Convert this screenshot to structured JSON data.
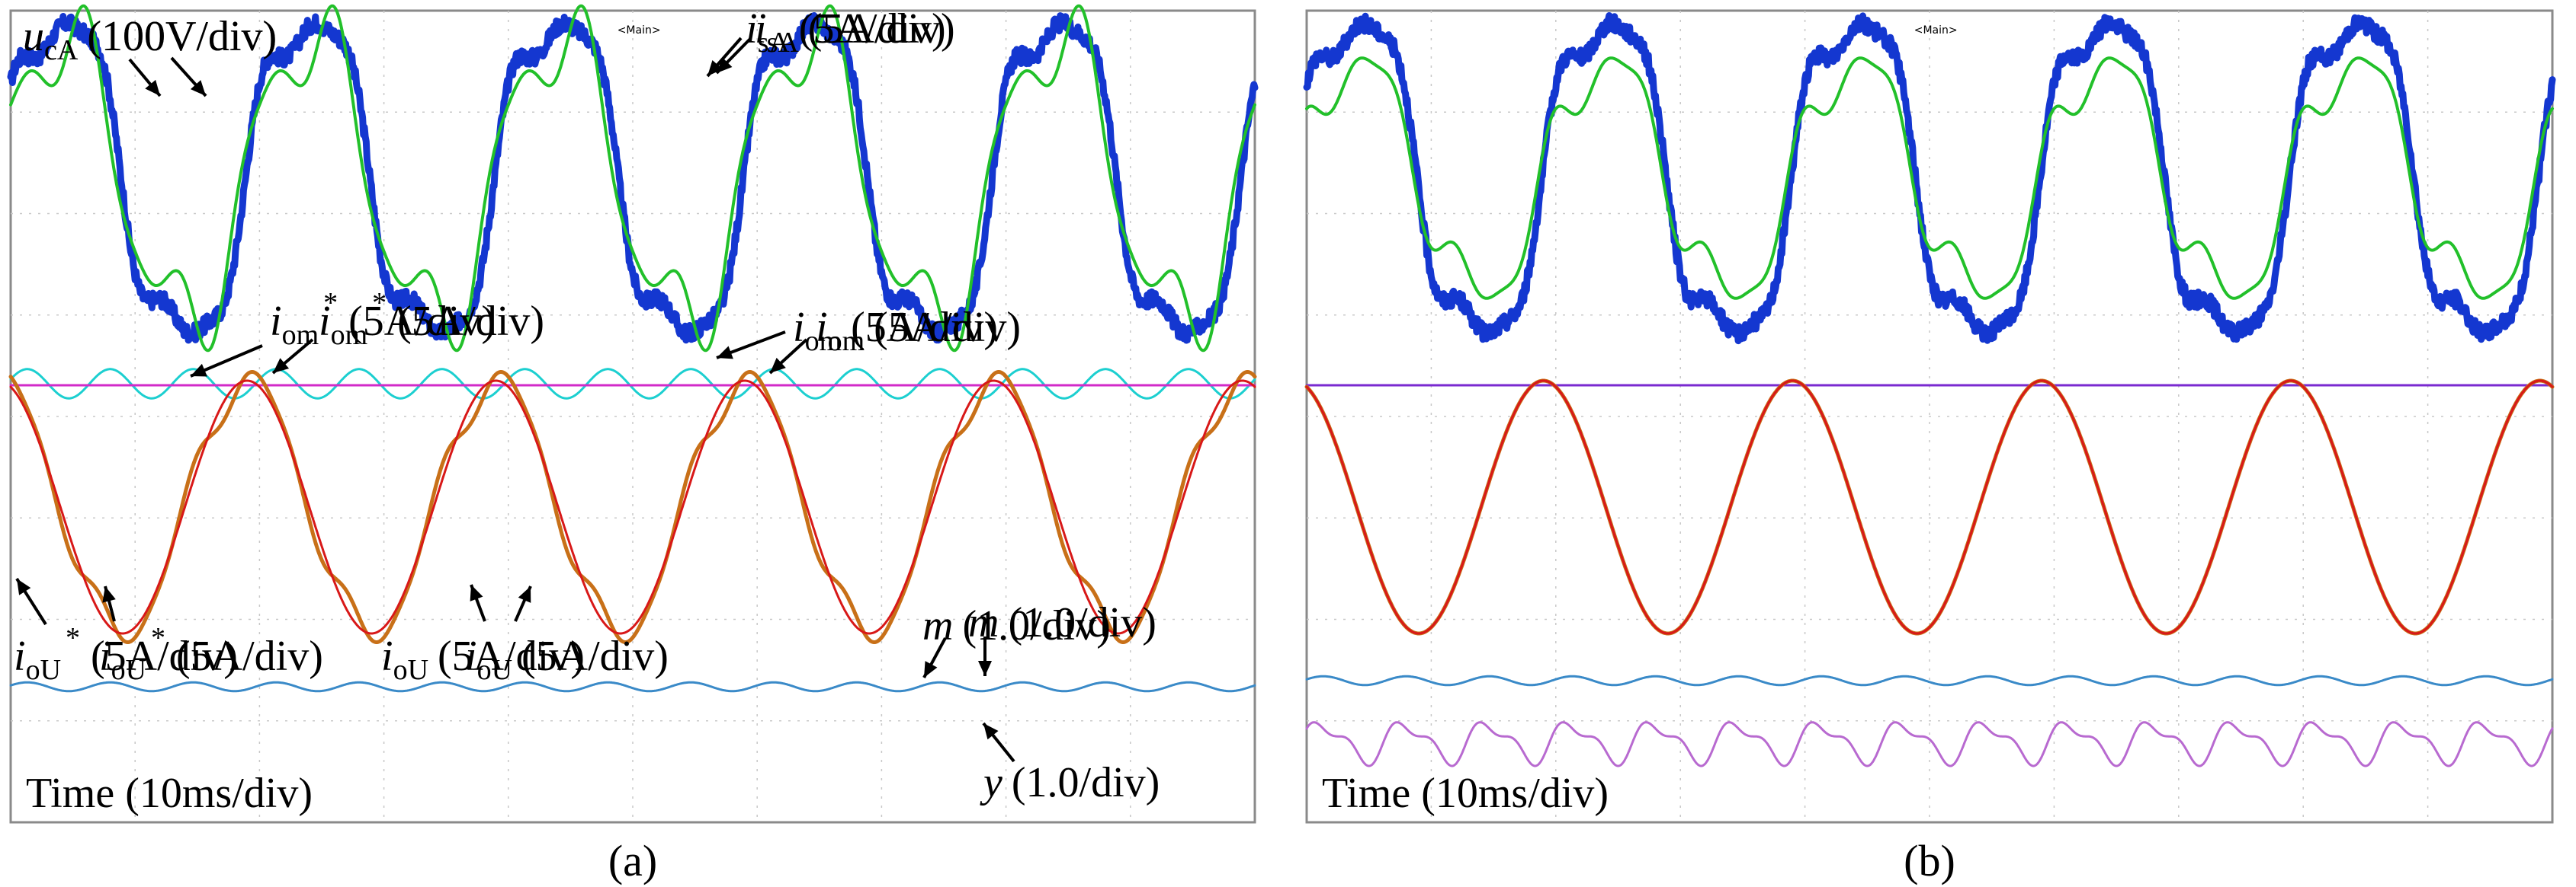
{
  "chart_data": [
    {
      "panel": "(a)",
      "type": "line",
      "title": "",
      "caption": "(a)",
      "xlabel": "Time (10ms/div)",
      "time_scale": "10ms/div",
      "main_marker": "Main",
      "traces": [
        {
          "key": "ucA",
          "base": "u",
          "sub": "cA",
          "sup": "",
          "scale": "(100V/div)",
          "color": "#1437d0",
          "shape": "grid_voltage",
          "amplitude_div": 2.5,
          "cycles": 5,
          "noise": 0.22
        },
        {
          "key": "isA",
          "base": "i",
          "sub": "sA",
          "sup": "",
          "scale": "(5A/div)",
          "color": "#22c02a",
          "shape": "grid_current",
          "amplitude_div": 2.3,
          "cycles": 5
        },
        {
          "key": "iom_ref",
          "base": "i",
          "sub": "om",
          "sup": "*",
          "scale": "(5A/div)",
          "color": "#1ccfd0",
          "shape": "ripple",
          "amplitude_div": 0.2,
          "cycles": 15
        },
        {
          "key": "iom",
          "base": "i",
          "sub": "om",
          "sup": "",
          "scale": "(5A/div)",
          "color": "#d22ac8",
          "shape": "flat",
          "amplitude_div": 0.0
        },
        {
          "key": "ioU_ref",
          "base": "i",
          "sub": "oU",
          "sup": "*",
          "scale": "(5A/div)",
          "color": "#c87018",
          "shape": "distorted_output",
          "amplitude_div": 2.0,
          "cycles": 5
        },
        {
          "key": "ioU",
          "base": "i",
          "sub": "oU",
          "sup": "",
          "scale": "(5A/div)",
          "color": "#d81818",
          "shape": "sine_output",
          "amplitude_div": 2.0,
          "cycles": 5
        },
        {
          "key": "m",
          "base": "m",
          "sub": "",
          "sup": "",
          "scale": "(1.0/div)",
          "color": "#3a8ac8",
          "shape": "ripple",
          "amplitude_div": 0.06,
          "cycles": 15
        }
      ]
    },
    {
      "panel": "(b)",
      "type": "line",
      "title": "",
      "caption": "(b)",
      "xlabel": "Time (10ms/div)",
      "time_scale": "10ms/div",
      "main_marker": "Main",
      "traces": [
        {
          "key": "ucA",
          "base": "u",
          "sub": "cA",
          "sup": "",
          "scale": "(100V/div)",
          "color": "#1437d0",
          "shape": "grid_voltage",
          "amplitude_div": 2.5,
          "cycles": 5,
          "noise": 0.22
        },
        {
          "key": "isA",
          "base": "i",
          "sub": "sA",
          "sup": "",
          "scale": "(5A/div)",
          "color": "#22c02a",
          "shape": "grid_current_b",
          "amplitude_div": 1.7,
          "cycles": 5
        },
        {
          "key": "iom_ref",
          "base": "i",
          "sub": "om",
          "sup": "*",
          "scale": "(5A/div)",
          "color": "#1ccfd0",
          "shape": "flat",
          "amplitude_div": 0.0
        },
        {
          "key": "iom",
          "base": "i",
          "sub": "om",
          "sup": "",
          "scale": "(5A/div)",
          "color": "#7a2ad0",
          "shape": "flat",
          "amplitude_div": 0.0
        },
        {
          "key": "ioU_ref",
          "base": "i",
          "sub": "oU",
          "sup": "*",
          "scale": "(5A/div)",
          "color": "#c87018",
          "shape": "sine_output",
          "amplitude_div": 2.0,
          "cycles": 5
        },
        {
          "key": "ioU",
          "base": "i",
          "sub": "oU",
          "sup": "",
          "scale": "(5A/div)",
          "color": "#d81818",
          "shape": "sine_output",
          "amplitude_div": 2.0,
          "cycles": 5
        },
        {
          "key": "m",
          "base": "m",
          "sub": "",
          "sup": "",
          "scale": "(1.0/div)",
          "color": "#3a8ac8",
          "shape": "ripple",
          "amplitude_div": 0.06,
          "cycles": 15
        },
        {
          "key": "y",
          "base": "y",
          "sub": "",
          "sup": "",
          "scale": "(1.0/div)",
          "color": "#b86ad0",
          "shape": "y_signal",
          "amplitude_div": 0.32,
          "cycles": 15
        }
      ]
    }
  ]
}
